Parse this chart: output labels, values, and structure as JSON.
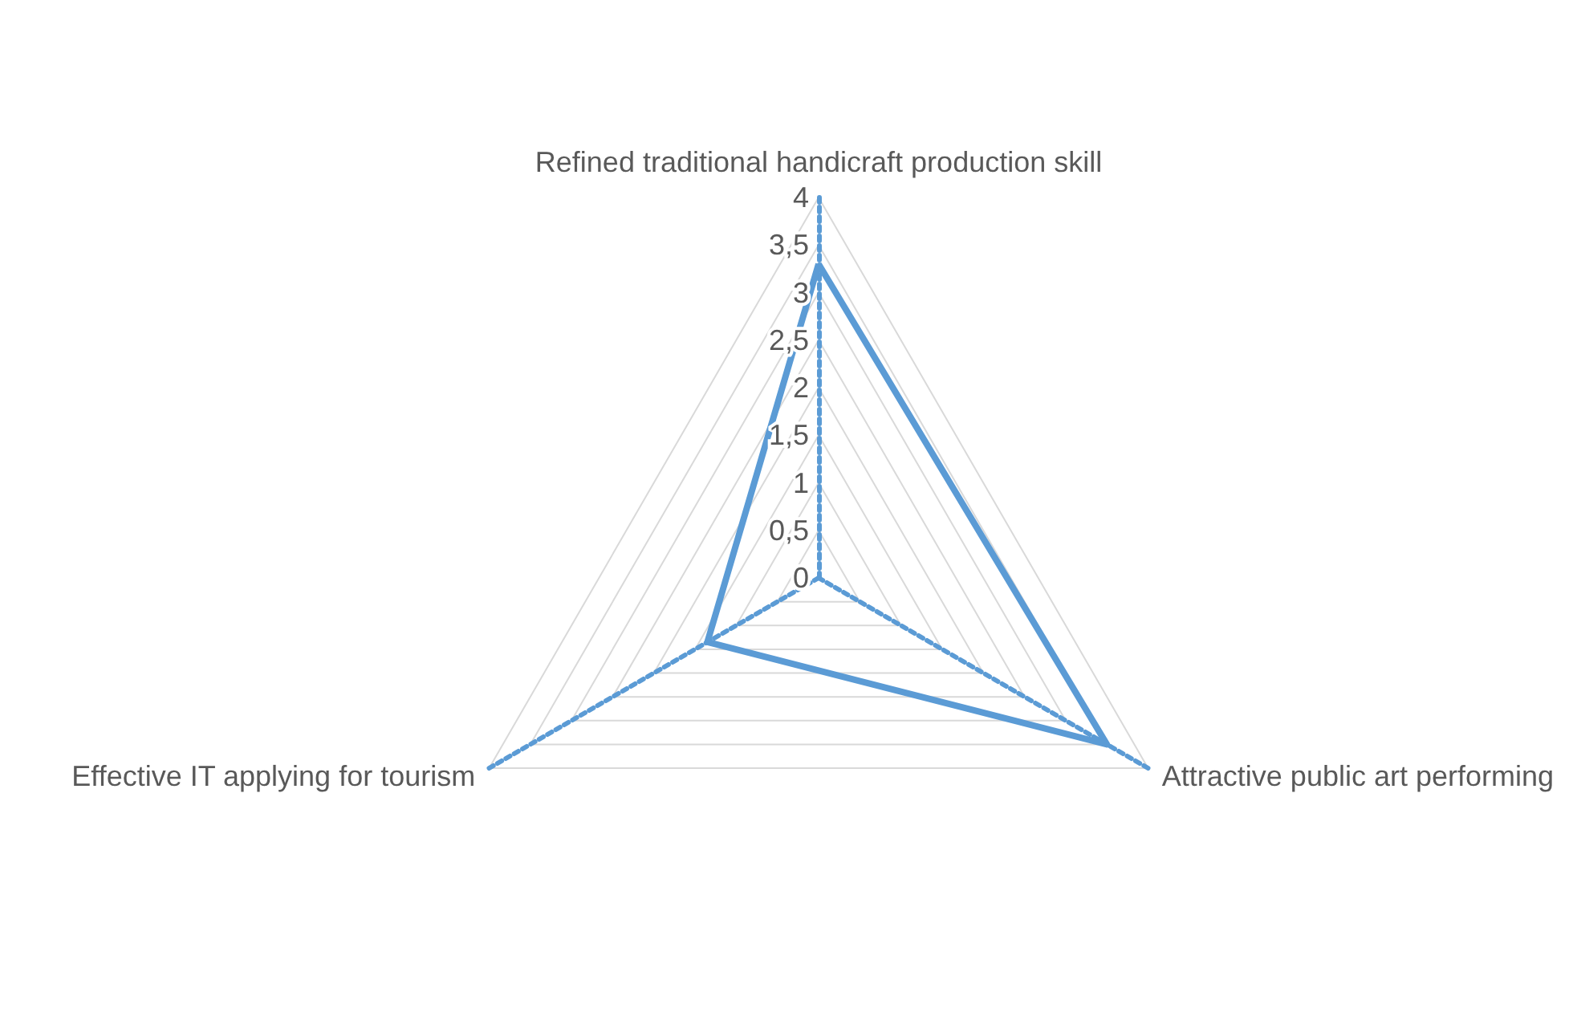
{
  "chart_data": {
    "type": "radar",
    "categories": [
      "Refined traditional handicraft production skill",
      "Attractive public art performing",
      "Effective IT applying for tourism"
    ],
    "series": [
      {
        "color": "#5b9bd5",
        "values": [
          3.3,
          3.5,
          1.35
        ]
      }
    ],
    "ylim": [
      0,
      4
    ],
    "yticks": [
      0,
      {
        "value": 0.5,
        "label": "0,5"
      },
      1,
      {
        "value": 1.5,
        "label": "1,5"
      },
      2,
      {
        "value": 2.5,
        "label": "2,5"
      },
      3,
      {
        "value": 3.5,
        "label": "3,5"
      },
      4
    ],
    "grid": true,
    "marker": "none",
    "line_style": "solid"
  }
}
